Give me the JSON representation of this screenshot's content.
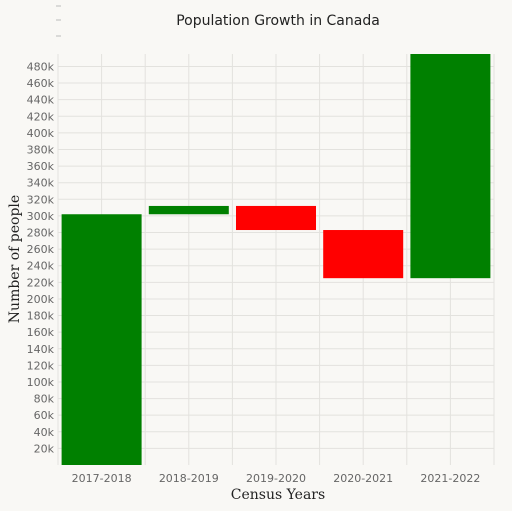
{
  "chart_data": {
    "type": "bar",
    "subtype": "waterfall",
    "title": "Population Growth in Canada",
    "xlabel": "Census Years",
    "ylabel": "Number of people",
    "categories": [
      "2017-2018",
      "2018-2019",
      "2019-2020",
      "2020-2021",
      "2021-2022"
    ],
    "bars": [
      {
        "category": "2017-2018",
        "start": 0,
        "end": 302000
      },
      {
        "category": "2018-2019",
        "start": 302000,
        "end": 312000
      },
      {
        "category": "2019-2020",
        "start": 312000,
        "end": 283000
      },
      {
        "category": "2020-2021",
        "start": 283000,
        "end": 225000
      },
      {
        "category": "2021-2022",
        "start": 225000,
        "end": 495000
      }
    ],
    "ylim": [
      0,
      495000
    ],
    "yticks": [
      {
        "value": 20000,
        "label": "20k"
      },
      {
        "value": 40000,
        "label": "40k"
      },
      {
        "value": 60000,
        "label": "60k"
      },
      {
        "value": 80000,
        "label": "80k"
      },
      {
        "value": 100000,
        "label": "100k"
      },
      {
        "value": 120000,
        "label": "120k"
      },
      {
        "value": 140000,
        "label": "140k"
      },
      {
        "value": 160000,
        "label": "160k"
      },
      {
        "value": 180000,
        "label": "180k"
      },
      {
        "value": 200000,
        "label": "200k"
      },
      {
        "value": 220000,
        "label": "220k"
      },
      {
        "value": 240000,
        "label": "240k"
      },
      {
        "value": 260000,
        "label": "260k"
      },
      {
        "value": 280000,
        "label": "280k"
      },
      {
        "value": 300000,
        "label": "300k"
      },
      {
        "value": 320000,
        "label": "320k"
      },
      {
        "value": 340000,
        "label": "340k"
      },
      {
        "value": 360000,
        "label": "360k"
      },
      {
        "value": 380000,
        "label": "380k"
      },
      {
        "value": 400000,
        "label": "400k"
      },
      {
        "value": 420000,
        "label": "420k"
      },
      {
        "value": 440000,
        "label": "440k"
      },
      {
        "value": 460000,
        "label": "460k"
      },
      {
        "value": 480000,
        "label": "480k"
      }
    ],
    "colors": {
      "increase": "#008000",
      "decrease": "#ff0000",
      "grid": "#e3e2de",
      "background": "#f9f8f5"
    },
    "grid": true,
    "legend": "none"
  }
}
